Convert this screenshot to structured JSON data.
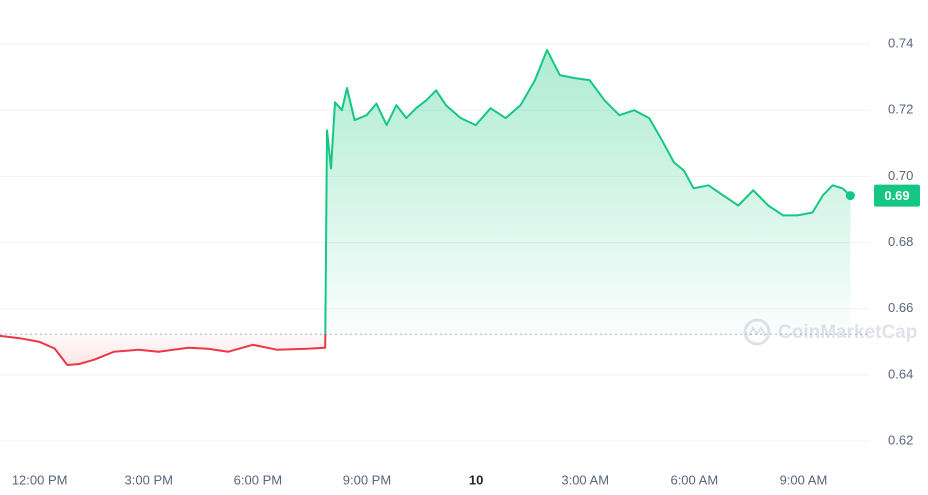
{
  "chart_data": {
    "type": "line",
    "x": [
      10.91,
      11.45,
      12.0,
      12.41,
      12.76,
      13.09,
      13.5,
      14.04,
      14.72,
      15.27,
      16.09,
      16.63,
      17.18,
      17.86,
      18.54,
      19.36,
      19.85,
      19.9,
      20.01,
      20.12,
      20.31,
      20.45,
      20.66,
      20.99,
      21.26,
      21.54,
      21.81,
      22.08,
      22.35,
      22.63,
      22.9,
      23.17,
      23.58,
      23.99,
      24.4,
      24.81,
      25.22,
      25.62,
      25.95,
      26.3,
      26.71,
      27.12,
      27.53,
      27.94,
      28.35,
      28.76,
      29.11,
      29.44,
      29.71,
      29.98,
      30.39,
      30.8,
      31.21,
      31.62,
      32.03,
      32.44,
      32.84,
      33.25,
      33.53,
      33.8,
      34.07,
      34.29
    ],
    "values": [
      0.6518,
      0.6511,
      0.65,
      0.648,
      0.643,
      0.6433,
      0.6446,
      0.647,
      0.6476,
      0.647,
      0.6482,
      0.6479,
      0.647,
      0.6491,
      0.6476,
      0.6479,
      0.6482,
      0.7139,
      0.7024,
      0.7224,
      0.72,
      0.7267,
      0.717,
      0.7185,
      0.722,
      0.7155,
      0.7215,
      0.7176,
      0.7206,
      0.723,
      0.726,
      0.7215,
      0.7176,
      0.7155,
      0.7206,
      0.7176,
      0.7215,
      0.7291,
      0.7382,
      0.7306,
      0.7297,
      0.7291,
      0.723,
      0.7185,
      0.72,
      0.7176,
      0.7109,
      0.7042,
      0.7018,
      0.6964,
      0.6973,
      0.6942,
      0.6912,
      0.6958,
      0.6912,
      0.6882,
      0.6882,
      0.6891,
      0.6942,
      0.6973,
      0.6964,
      0.6942
    ],
    "baseline": 0.6523,
    "color_above": "#16c784",
    "color_below": "#ea3943",
    "xlim": [
      10.91,
      34.83
    ],
    "xticks": [
      {
        "value": 12,
        "label": "12:00 PM"
      },
      {
        "value": 15,
        "label": "3:00 PM"
      },
      {
        "value": 18,
        "label": "6:00 PM"
      },
      {
        "value": 21,
        "label": "9:00 PM"
      },
      {
        "value": 24,
        "label": "10"
      },
      {
        "value": 27,
        "label": "3:00 AM"
      },
      {
        "value": 30,
        "label": "6:00 AM"
      },
      {
        "value": 33,
        "label": "9:00 AM"
      }
    ],
    "ylim": [
      0.6143,
      0.7533
    ],
    "yticks": [
      0.62,
      0.64,
      0.66,
      0.68,
      {
        "value": 0.7,
        "label": "0.70"
      },
      0.72,
      0.74
    ],
    "grid": true,
    "price_tag": "0.69",
    "watermark": "CoinMarketCap"
  }
}
